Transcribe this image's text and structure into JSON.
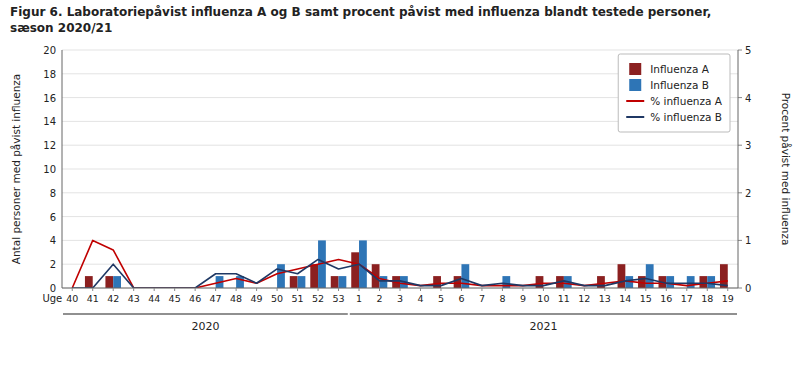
{
  "chart_data": {
    "type": "bar",
    "title": "Figur 6. Laboratoriepåvist influenza A og B samt procent påvist med influenza blandt testede personer,",
    "subtitle": "sæson 2020/21",
    "x_label": "Uge",
    "y_label": "Antal personer med påvist influenza",
    "y2_label": "Procent påvist med influenza",
    "categories": [
      "40",
      "41",
      "42",
      "43",
      "44",
      "45",
      "46",
      "47",
      "48",
      "49",
      "50",
      "51",
      "52",
      "53",
      "1",
      "2",
      "3",
      "4",
      "5",
      "6",
      "7",
      "8",
      "9",
      "10",
      "11",
      "12",
      "13",
      "14",
      "15",
      "16",
      "17",
      "18",
      "19"
    ],
    "series": [
      {
        "name": "Influenza A",
        "type": "bar",
        "color": "#8B2020",
        "values": [
          0,
          1,
          1,
          0,
          0,
          0,
          0,
          0,
          0,
          0,
          0,
          1,
          2,
          1,
          3,
          2,
          1,
          0,
          1,
          1,
          0,
          0,
          0,
          1,
          1,
          0,
          1,
          2,
          1,
          1,
          0,
          1,
          2
        ]
      },
      {
        "name": "Influenza B",
        "type": "bar",
        "color": "#2E75B6",
        "values": [
          0,
          0,
          1,
          0,
          0,
          0,
          0,
          1,
          1,
          0,
          2,
          1,
          4,
          1,
          4,
          1,
          1,
          0,
          0,
          2,
          0,
          1,
          0,
          0,
          1,
          0,
          0,
          1,
          2,
          1,
          1,
          1,
          0
        ]
      },
      {
        "name": "% influenza A",
        "type": "line",
        "axis": "y2",
        "color": "#C00000",
        "values": [
          0.0,
          1.0,
          0.8,
          0.0,
          0.0,
          0.0,
          0.0,
          0.1,
          0.2,
          0.1,
          0.3,
          0.4,
          0.5,
          0.6,
          0.5,
          0.2,
          0.1,
          0.05,
          0.1,
          0.1,
          0.05,
          0.05,
          0.05,
          0.1,
          0.1,
          0.05,
          0.1,
          0.15,
          0.1,
          0.1,
          0.05,
          0.1,
          0.15
        ]
      },
      {
        "name": "% influenza B",
        "type": "line",
        "axis": "y2",
        "color": "#1F3864",
        "values": [
          0.0,
          0.0,
          0.5,
          0.0,
          0.0,
          0.0,
          0.0,
          0.3,
          0.3,
          0.1,
          0.4,
          0.3,
          0.6,
          0.4,
          0.5,
          0.15,
          0.15,
          0.05,
          0.05,
          0.2,
          0.05,
          0.1,
          0.05,
          0.05,
          0.15,
          0.05,
          0.05,
          0.15,
          0.2,
          0.1,
          0.1,
          0.1,
          0.05
        ]
      }
    ],
    "ylim": [
      0,
      20
    ],
    "yticks": [
      0,
      2,
      4,
      6,
      8,
      10,
      12,
      14,
      16,
      18,
      20
    ],
    "y2lim": [
      0,
      5
    ],
    "y2ticks": [
      0,
      1,
      2,
      3,
      4,
      5
    ],
    "grid": true,
    "legend": "upper right",
    "annotations": [
      {
        "text": "2020",
        "from": "40",
        "to": "53"
      },
      {
        "text": "2021",
        "from": "1",
        "to": "19"
      }
    ]
  }
}
